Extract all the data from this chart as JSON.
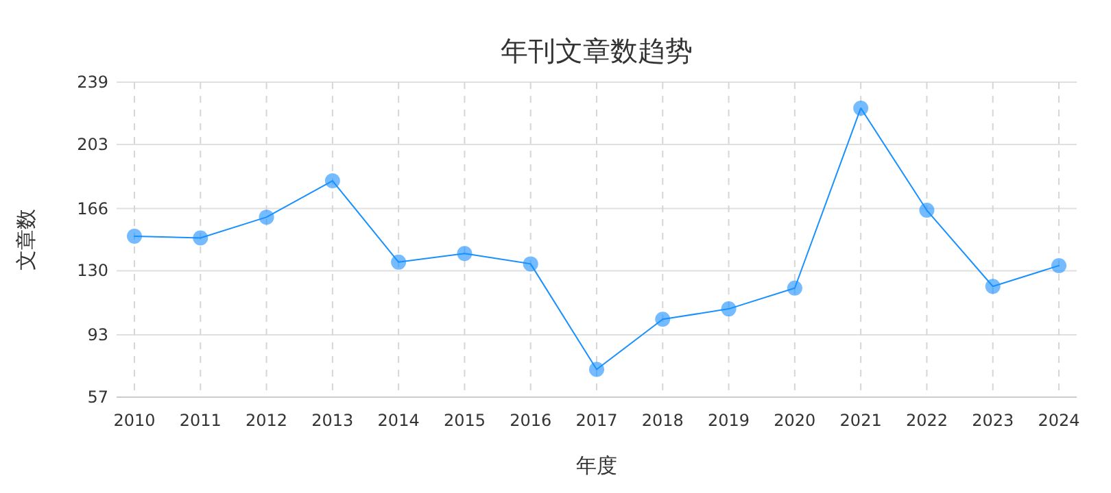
{
  "chart_data": {
    "type": "line",
    "title": "年刊文章数趋势",
    "xlabel": "年度",
    "ylabel": "文章数",
    "categories": [
      "2010",
      "2011",
      "2012",
      "2013",
      "2014",
      "2015",
      "2016",
      "2017",
      "2018",
      "2019",
      "2020",
      "2021",
      "2022",
      "2023",
      "2024"
    ],
    "series": [
      {
        "color": "#1890ff",
        "values": [
          150,
          149,
          161,
          182,
          135,
          140,
          134,
          73,
          102,
          108,
          120,
          224,
          165,
          121,
          133
        ]
      }
    ],
    "ylim": [
      57,
      239
    ],
    "yticks": [
      57,
      93,
      130,
      166,
      203,
      239
    ],
    "grid": true,
    "marker": "circle",
    "line_style": "solid"
  }
}
